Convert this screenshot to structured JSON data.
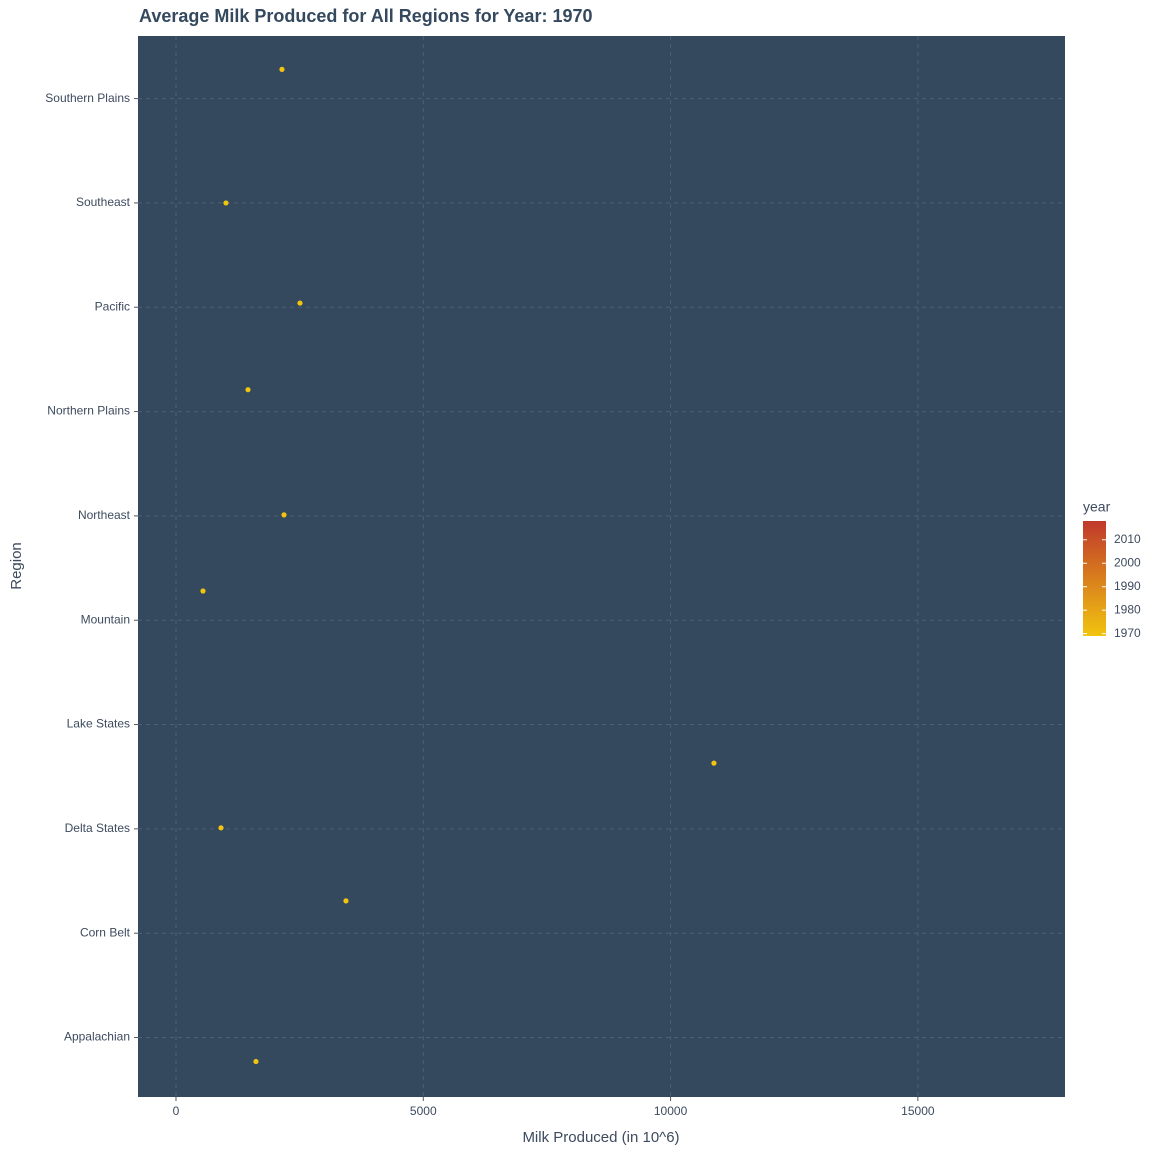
{
  "chart_data": {
    "type": "scatter",
    "title": "Average Milk Produced for All Regions for Year: 1970",
    "x_label": "Milk Produced (in 10^6)",
    "y_label": "Region",
    "series": [
      {
        "color": "#f1c40f",
        "x": [
          1617,
          3437,
          910,
          10877,
          546,
          2184,
          1456,
          2507,
          1011,
          2143
        ],
        "y": [
          0.77,
          2.31,
          3.01,
          3.63,
          5.28,
          6.01,
          7.21,
          8.04,
          9.0,
          10.28
        ]
      }
    ],
    "xlim": [
      -768,
      17975
    ],
    "xticks": [
      0,
      5000,
      10000,
      15000
    ],
    "ylim": [
      0.43,
      10.6
    ],
    "yticks": [
      {
        "value": 1,
        "label": "Appalachian"
      },
      {
        "value": 2,
        "label": "Corn Belt"
      },
      {
        "value": 3,
        "label": "Delta States"
      },
      {
        "value": 4,
        "label": "Lake States"
      },
      {
        "value": 5,
        "label": "Mountain"
      },
      {
        "value": 6,
        "label": "Northeast"
      },
      {
        "value": 7,
        "label": "Northern Plains"
      },
      {
        "value": 8,
        "label": "Pacific"
      },
      {
        "value": 9,
        "label": "Southeast"
      },
      {
        "value": 10,
        "label": "Southern Plains"
      }
    ],
    "grid": true,
    "panel_color": "#34495e",
    "color_scale": {
      "title": "year",
      "lim": [
        1969,
        2018
      ],
      "ticks": [
        1970,
        1980,
        1990,
        2000,
        2010
      ],
      "colors": [
        "#f1c40f",
        "#c0392b"
      ]
    }
  }
}
